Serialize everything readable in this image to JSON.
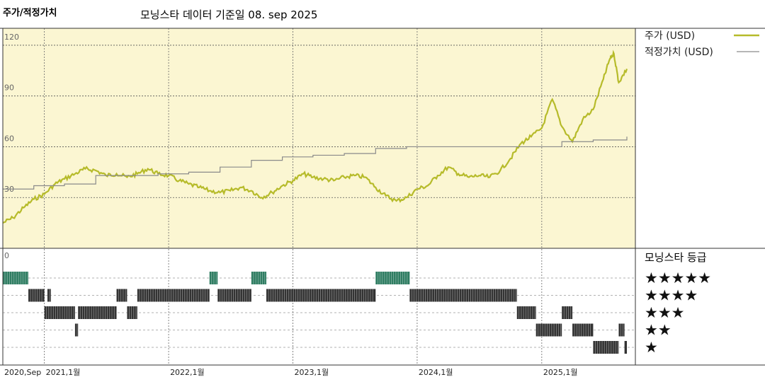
{
  "header": {
    "left_title": "주가/적정가치",
    "subtitle": "모닝스타 데이터 기준일 08. sep 2025"
  },
  "colors": {
    "price_line": "#b6bb2a",
    "fair_value_line": "#8a8a8a",
    "plot_bg": "#fbf6d2",
    "five_star_bar": "#2f7d62",
    "rating_bar": "#333333"
  },
  "chart_data": {
    "type": "line",
    "title": "주가/적정가치",
    "subtitle": "모닝스타 데이터 기준일 08. sep 2025",
    "x_range": [
      "2020-09-01",
      "2025-09-08"
    ],
    "x_ticks": [
      {
        "date": "2020-09-01",
        "label": "2020,Sep"
      },
      {
        "date": "2021-01-01",
        "label": "2021,1월"
      },
      {
        "date": "2022-01-01",
        "label": "2022,1월"
      },
      {
        "date": "2023-01-01",
        "label": "2023,1월"
      },
      {
        "date": "2024-01-01",
        "label": "2024,1월"
      },
      {
        "date": "2025-01-01",
        "label": "2025,1월"
      }
    ],
    "ylim": [
      0,
      130
    ],
    "y_ticks": [
      {
        "value": 120,
        "label": "120"
      },
      {
        "value": 90,
        "label": "90"
      },
      {
        "value": 60,
        "label": "60"
      },
      {
        "value": 30,
        "label": "30"
      },
      {
        "value": 0,
        "label": "0"
      }
    ],
    "grid": true,
    "legend_position": "right",
    "series": [
      {
        "name": "주가 (USD)",
        "points": [
          [
            "2020-09-01",
            15
          ],
          [
            "2020-10-01",
            18
          ],
          [
            "2020-11-01",
            24
          ],
          [
            "2020-12-01",
            29
          ],
          [
            "2021-01-01",
            32
          ],
          [
            "2021-02-01",
            38
          ],
          [
            "2021-03-01",
            41
          ],
          [
            "2021-04-01",
            44
          ],
          [
            "2021-05-01",
            47
          ],
          [
            "2021-06-01",
            46
          ],
          [
            "2021-07-01",
            43
          ],
          [
            "2021-08-01",
            44
          ],
          [
            "2021-09-01",
            42
          ],
          [
            "2021-10-01",
            44
          ],
          [
            "2021-11-01",
            47
          ],
          [
            "2021-12-01",
            44
          ],
          [
            "2022-01-01",
            43
          ],
          [
            "2022-02-01",
            40
          ],
          [
            "2022-03-01",
            38
          ],
          [
            "2022-04-01",
            36
          ],
          [
            "2022-05-01",
            34
          ],
          [
            "2022-06-01",
            33
          ],
          [
            "2022-07-01",
            34
          ],
          [
            "2022-08-01",
            36
          ],
          [
            "2022-09-01",
            34
          ],
          [
            "2022-10-01",
            30
          ],
          [
            "2022-11-01",
            33
          ],
          [
            "2022-12-01",
            37
          ],
          [
            "2023-01-01",
            40
          ],
          [
            "2023-02-01",
            44
          ],
          [
            "2023-03-01",
            42
          ],
          [
            "2023-04-01",
            41
          ],
          [
            "2023-05-01",
            40
          ],
          [
            "2023-06-01",
            42
          ],
          [
            "2023-07-01",
            43
          ],
          [
            "2023-08-01",
            42
          ],
          [
            "2023-09-01",
            36
          ],
          [
            "2023-10-01",
            31
          ],
          [
            "2023-11-01",
            28
          ],
          [
            "2023-12-01",
            30
          ],
          [
            "2024-01-01",
            35
          ],
          [
            "2024-02-01",
            37
          ],
          [
            "2024-03-01",
            43
          ],
          [
            "2024-04-01",
            48
          ],
          [
            "2024-05-01",
            44
          ],
          [
            "2024-06-01",
            42
          ],
          [
            "2024-07-01",
            43
          ],
          [
            "2024-08-01",
            42
          ],
          [
            "2024-09-01",
            46
          ],
          [
            "2024-10-01",
            53
          ],
          [
            "2024-11-01",
            62
          ],
          [
            "2024-12-01",
            66
          ],
          [
            "2025-01-01",
            71
          ],
          [
            "2025-02-01",
            88
          ],
          [
            "2025-03-01",
            72
          ],
          [
            "2025-04-01",
            63
          ],
          [
            "2025-05-01",
            76
          ],
          [
            "2025-06-01",
            82
          ],
          [
            "2025-07-01",
            100
          ],
          [
            "2025-07-20",
            112
          ],
          [
            "2025-08-01",
            115
          ],
          [
            "2025-08-15",
            98
          ],
          [
            "2025-09-08",
            106
          ]
        ]
      },
      {
        "name": "적정가치 (USD)",
        "points": [
          [
            "2020-09-01",
            35
          ],
          [
            "2020-12-01",
            37
          ],
          [
            "2021-03-01",
            38
          ],
          [
            "2021-06-01",
            43
          ],
          [
            "2021-09-01",
            43
          ],
          [
            "2021-12-01",
            44
          ],
          [
            "2022-03-01",
            45
          ],
          [
            "2022-06-01",
            48
          ],
          [
            "2022-09-01",
            52
          ],
          [
            "2022-12-01",
            54
          ],
          [
            "2023-03-01",
            55
          ],
          [
            "2023-06-01",
            56
          ],
          [
            "2023-09-01",
            59
          ],
          [
            "2023-12-01",
            60
          ],
          [
            "2024-03-01",
            60
          ],
          [
            "2024-06-01",
            60
          ],
          [
            "2024-09-01",
            60
          ],
          [
            "2024-12-01",
            60
          ],
          [
            "2025-03-01",
            63
          ],
          [
            "2025-06-01",
            64
          ],
          [
            "2025-09-08",
            66
          ]
        ]
      }
    ]
  },
  "rating": {
    "title": "모닝스타 등급",
    "rows": [
      {
        "label": "★★★★★",
        "stars": 5,
        "periods": [
          [
            "2020-09-01",
            "2020-11-15"
          ],
          [
            "2022-05-01",
            "2022-05-25"
          ],
          [
            "2022-09-01",
            "2022-10-15"
          ],
          [
            "2023-09-01",
            "2023-12-10"
          ]
        ]
      },
      {
        "label": "★★★★",
        "stars": 4,
        "periods": [
          [
            "2020-11-15",
            "2021-01-01"
          ],
          [
            "2021-01-10",
            "2021-01-20"
          ],
          [
            "2021-08-01",
            "2021-09-01"
          ],
          [
            "2021-10-01",
            "2022-05-01"
          ],
          [
            "2022-05-25",
            "2022-09-01"
          ],
          [
            "2022-10-15",
            "2023-09-01"
          ],
          [
            "2023-12-10",
            "2024-10-20"
          ]
        ]
      },
      {
        "label": "★★★",
        "stars": 3,
        "periods": [
          [
            "2021-01-01",
            "2021-04-01"
          ],
          [
            "2021-04-10",
            "2021-08-01"
          ],
          [
            "2021-09-01",
            "2021-10-01"
          ],
          [
            "2024-10-20",
            "2024-12-15"
          ],
          [
            "2025-03-01",
            "2025-04-01"
          ]
        ]
      },
      {
        "label": "★★",
        "stars": 2,
        "periods": [
          [
            "2021-04-01",
            "2021-04-10"
          ],
          [
            "2024-12-15",
            "2025-03-01"
          ],
          [
            "2025-04-01",
            "2025-06-01"
          ],
          [
            "2025-08-15",
            "2025-09-01"
          ]
        ]
      },
      {
        "label": "★",
        "stars": 1,
        "periods": [
          [
            "2025-06-01",
            "2025-08-15"
          ],
          [
            "2025-09-01",
            "2025-09-08"
          ]
        ]
      }
    ]
  }
}
